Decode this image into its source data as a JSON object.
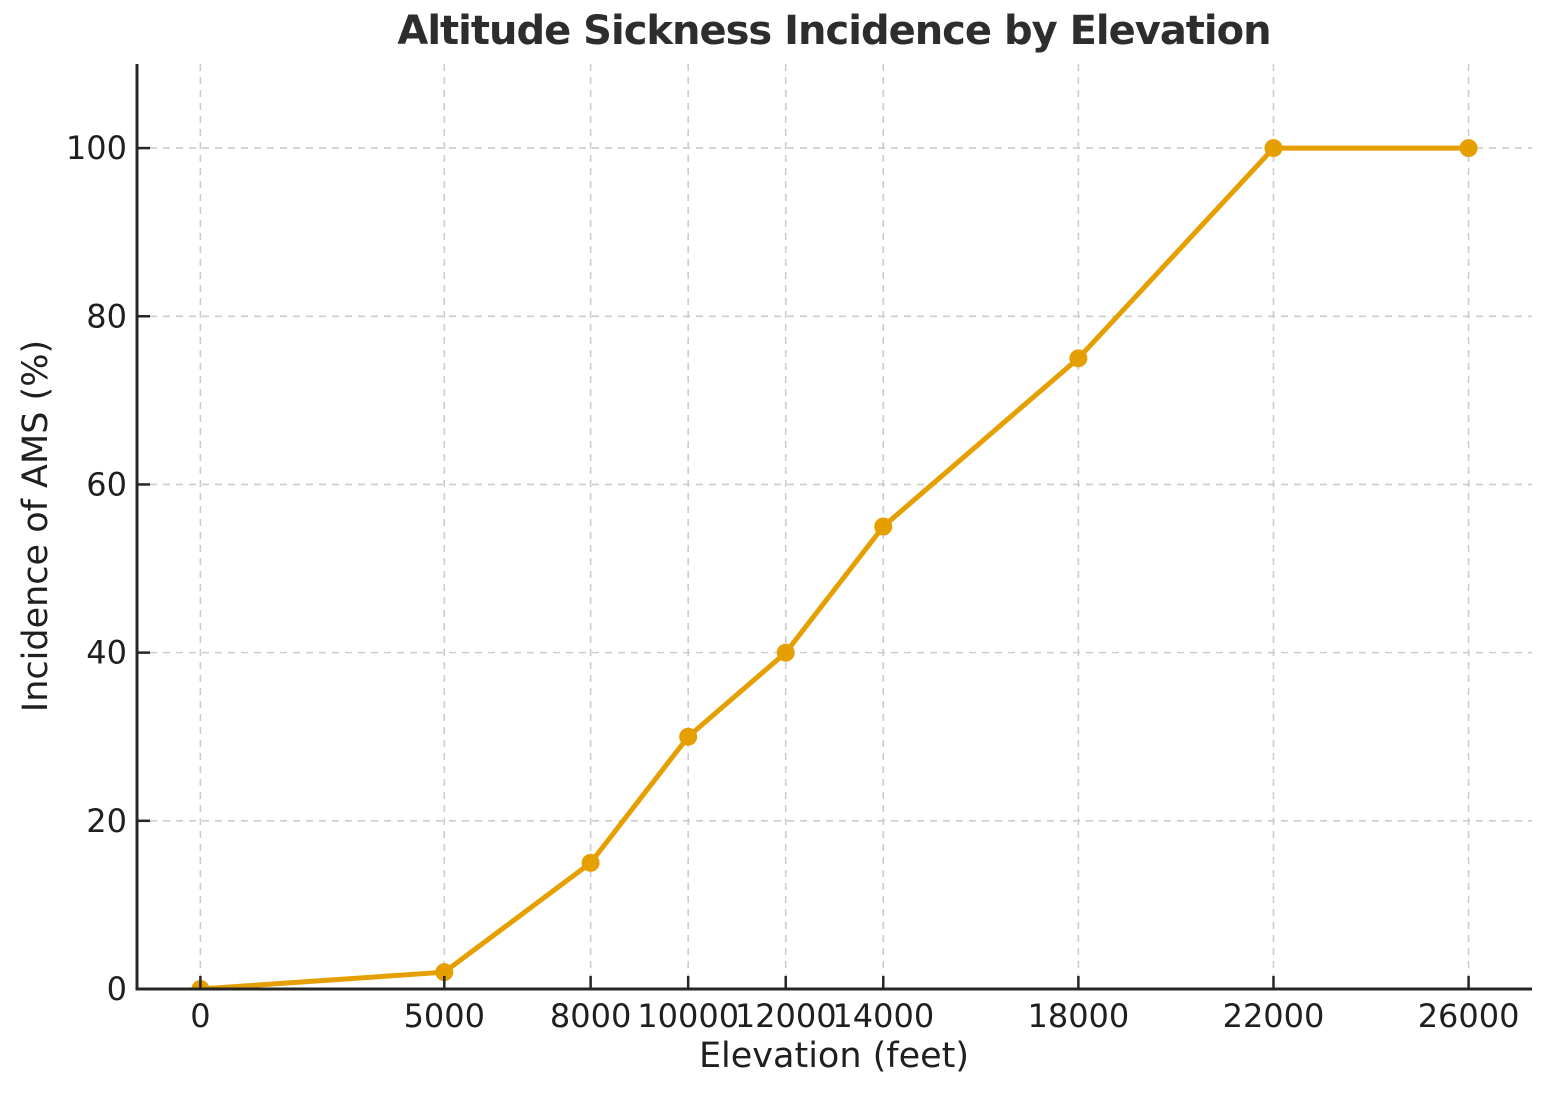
{
  "chart_data": {
    "type": "line",
    "title": "Altitude Sickness Incidence by Elevation",
    "xlabel": "Elevation (feet)",
    "ylabel": "Incidence of AMS (%)",
    "series": [
      {
        "name": "Incidence of AMS",
        "x": [
          0,
          5000,
          8000,
          10000,
          12000,
          14000,
          18000,
          22000,
          26000
        ],
        "values": [
          0,
          2,
          15,
          30,
          40,
          55,
          75,
          100,
          100
        ]
      }
    ],
    "xticks": [
      0,
      5000,
      8000,
      10000,
      12000,
      14000,
      18000,
      22000,
      26000
    ],
    "yticks": [
      0,
      20,
      40,
      60,
      80,
      100
    ],
    "xlim": [
      -1300,
      27300
    ],
    "ylim": [
      0,
      110
    ],
    "grid": "dashed",
    "legend_position": "none",
    "marker": "circle",
    "colors": {
      "line": "#E69F00",
      "marker": "#E69F00",
      "grid": "#cccccc",
      "spine": "#262626",
      "tick_text": "#1f1f1f",
      "title_text": "#2d2d2d",
      "background": "#ffffff"
    }
  }
}
